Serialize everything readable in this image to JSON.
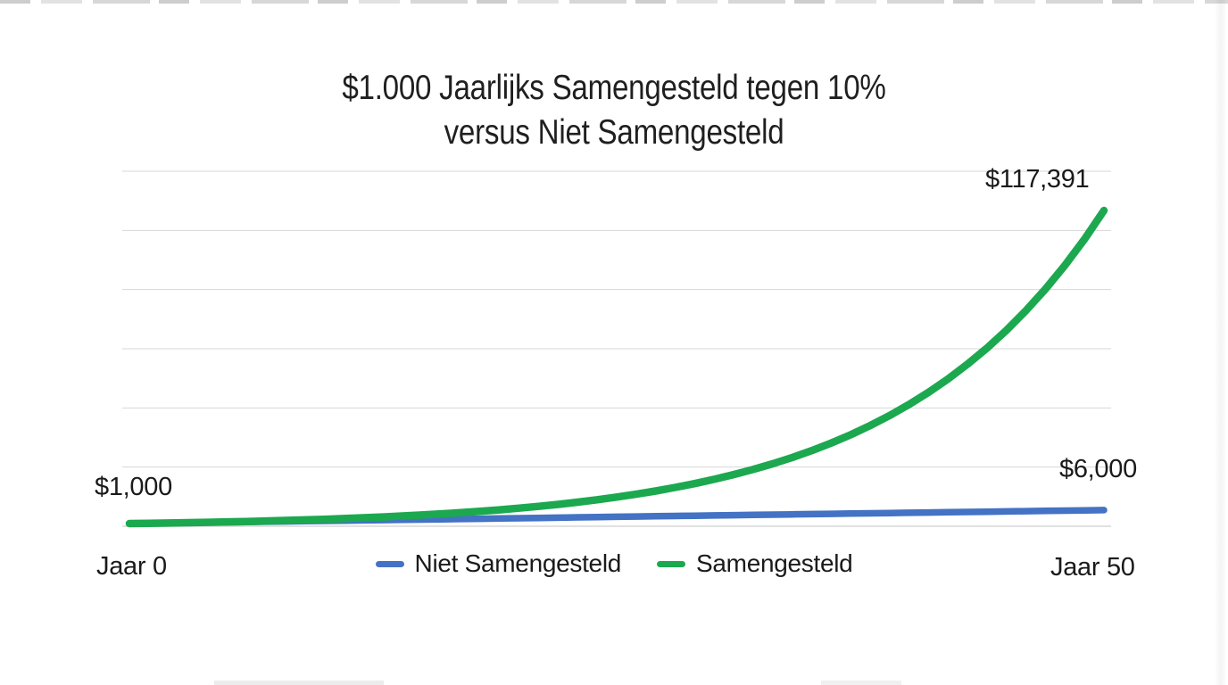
{
  "title": {
    "line1": "$1.000 Jaarlijks Samengesteld tegen 10%",
    "line2": "versus Niet Samengesteld"
  },
  "labels": {
    "start_value": "$1,000",
    "compound_end_value": "$117,391",
    "simple_end_value": "$6,000",
    "x_left": "Jaar 0",
    "x_right": "Jaar 50"
  },
  "legend": [
    {
      "label": "Niet Samengesteld",
      "color": "#4472c4"
    },
    {
      "label": "Samengesteld",
      "color": "#1ca84f"
    }
  ],
  "colors": {
    "compound_line": "#1ca84f",
    "simple_line": "#4472c4",
    "gridline": "#d7d7d7",
    "text": "#1a1a1a"
  },
  "chart_data": {
    "type": "line",
    "title": "$1.000 Jaarlijks Samengesteld tegen 10% versus Niet Samengesteld",
    "xlabel": "Jaar",
    "ylabel": "",
    "x": [
      0,
      5,
      10,
      15,
      20,
      25,
      30,
      35,
      40,
      45,
      50
    ],
    "series": [
      {
        "name": "Niet Samengesteld",
        "color": "#4472c4",
        "interpolation": "linear",
        "values": [
          1000,
          1500,
          2000,
          2500,
          3000,
          3500,
          4000,
          4500,
          5000,
          5500,
          6000
        ]
      },
      {
        "name": "Samengesteld",
        "color": "#1ca84f",
        "interpolation": "exponential",
        "values": [
          1000,
          1611,
          2594,
          4177,
          6727,
          10835,
          17449,
          28102,
          45259,
          72890,
          117391
        ]
      }
    ],
    "annotations": [
      "$1,000",
      "$117,391",
      "$6,000"
    ],
    "x_axis_labels": [
      "Jaar 0",
      "Jaar 50"
    ],
    "xlim": [
      0,
      50
    ],
    "ylim": [
      0,
      130000
    ],
    "grid": "horizontal",
    "legend_position": "bottom"
  }
}
